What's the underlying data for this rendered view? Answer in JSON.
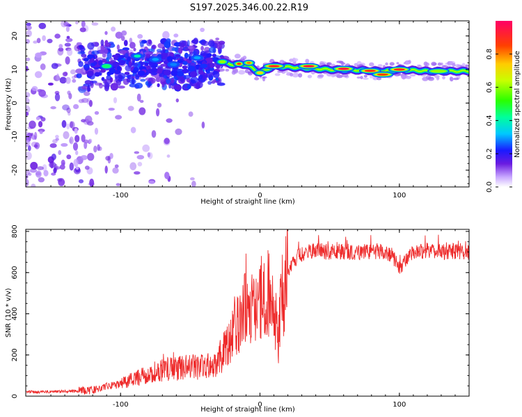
{
  "title": "S197.2025.346.00.22.R19",
  "colors": {
    "snr_line": "#ee2a2a",
    "axis": "#000000"
  },
  "chart_data": [
    {
      "type": "heatmap",
      "name": "spectrogram",
      "xlabel": "Height of straight line (km)",
      "ylabel": "Frequency (Hz)",
      "xlim": [
        -168,
        150
      ],
      "ylim": [
        -25,
        24.5
      ],
      "xticks": [
        -100,
        0,
        100
      ],
      "yticks": [
        -20,
        -10,
        0,
        10,
        20
      ],
      "colorbar": {
        "label": "Normalized spectral amplitude",
        "range": [
          0,
          1
        ],
        "ticks": [
          "0.0",
          "0.2",
          "0.4",
          "0.6",
          "0.8"
        ]
      },
      "ridge": [
        {
          "x": -150,
          "f": 10.0
        },
        {
          "x": -120,
          "f": 11.0
        },
        {
          "x": -100,
          "f": 11.5
        },
        {
          "x": -80,
          "f": 12.0
        },
        {
          "x": -60,
          "f": 11.5
        },
        {
          "x": -40,
          "f": 11.5
        },
        {
          "x": -30,
          "f": 12.5
        },
        {
          "x": -20,
          "f": 11.5
        },
        {
          "x": -10,
          "f": 11.5
        },
        {
          "x": 0,
          "f": 9.0
        },
        {
          "x": 10,
          "f": 11.0
        },
        {
          "x": 30,
          "f": 10.5
        },
        {
          "x": 50,
          "f": 10.0
        },
        {
          "x": 70,
          "f": 9.8
        },
        {
          "x": 90,
          "f": 9.5
        },
        {
          "x": 100,
          "f": 10.0
        },
        {
          "x": 120,
          "f": 9.5
        },
        {
          "x": 150,
          "f": 9.5
        }
      ],
      "peaks": [
        {
          "x": -110,
          "f": 11.0,
          "amp": 0.45
        },
        {
          "x": -88,
          "f": 14.0,
          "amp": 0.4
        },
        {
          "x": -75,
          "f": 13.0,
          "amp": 0.3
        },
        {
          "x": -62,
          "f": 11.5,
          "amp": 0.28
        },
        {
          "x": -45,
          "f": 13.5,
          "amp": 0.3
        },
        {
          "x": -27,
          "f": 12.3,
          "amp": 0.6
        },
        {
          "x": -15,
          "f": 11.7,
          "amp": 0.85
        },
        {
          "x": -8,
          "f": 12.0,
          "amp": 0.8
        },
        {
          "x": 0,
          "f": 9.0,
          "amp": 0.7
        },
        {
          "x": 10,
          "f": 11.0,
          "amp": 0.9
        },
        {
          "x": 35,
          "f": 11.0,
          "amp": 0.95
        },
        {
          "x": 60,
          "f": 10.2,
          "amp": 0.95
        },
        {
          "x": 79,
          "f": 9.6,
          "amp": 0.9
        },
        {
          "x": 88,
          "f": 8.5,
          "amp": 0.85
        },
        {
          "x": 100,
          "f": 10.0,
          "amp": 0.9
        },
        {
          "x": 128,
          "f": 9.5,
          "amp": 0.6
        }
      ]
    },
    {
      "type": "line",
      "name": "snr",
      "xlabel": "Height of straight line (km)",
      "ylabel": "SNR (10 * v/v)",
      "xlim": [
        -168,
        150
      ],
      "ylim": [
        0,
        810
      ],
      "xticks": [
        -100,
        0,
        100
      ],
      "yticks": [
        0,
        200,
        400,
        600,
        800
      ],
      "series": [
        {
          "name": "SNR",
          "x": [
            -168,
            -160,
            -150,
            -140,
            -130,
            -120,
            -110,
            -100,
            -90,
            -80,
            -70,
            -60,
            -50,
            -40,
            -30,
            -25,
            -20,
            -15,
            -10,
            -5,
            0,
            5,
            10,
            13,
            15,
            20,
            25,
            30,
            40,
            50,
            60,
            70,
            80,
            90,
            95,
            100,
            110,
            120,
            130,
            140,
            150
          ],
          "y": [
            22,
            20,
            22,
            23,
            25,
            30,
            45,
            60,
            85,
            110,
            130,
            135,
            140,
            145,
            170,
            230,
            310,
            380,
            420,
            450,
            470,
            500,
            480,
            240,
            450,
            600,
            660,
            690,
            705,
            700,
            700,
            700,
            700,
            700,
            680,
            620,
            700,
            705,
            700,
            705,
            700
          ]
        }
      ]
    }
  ]
}
